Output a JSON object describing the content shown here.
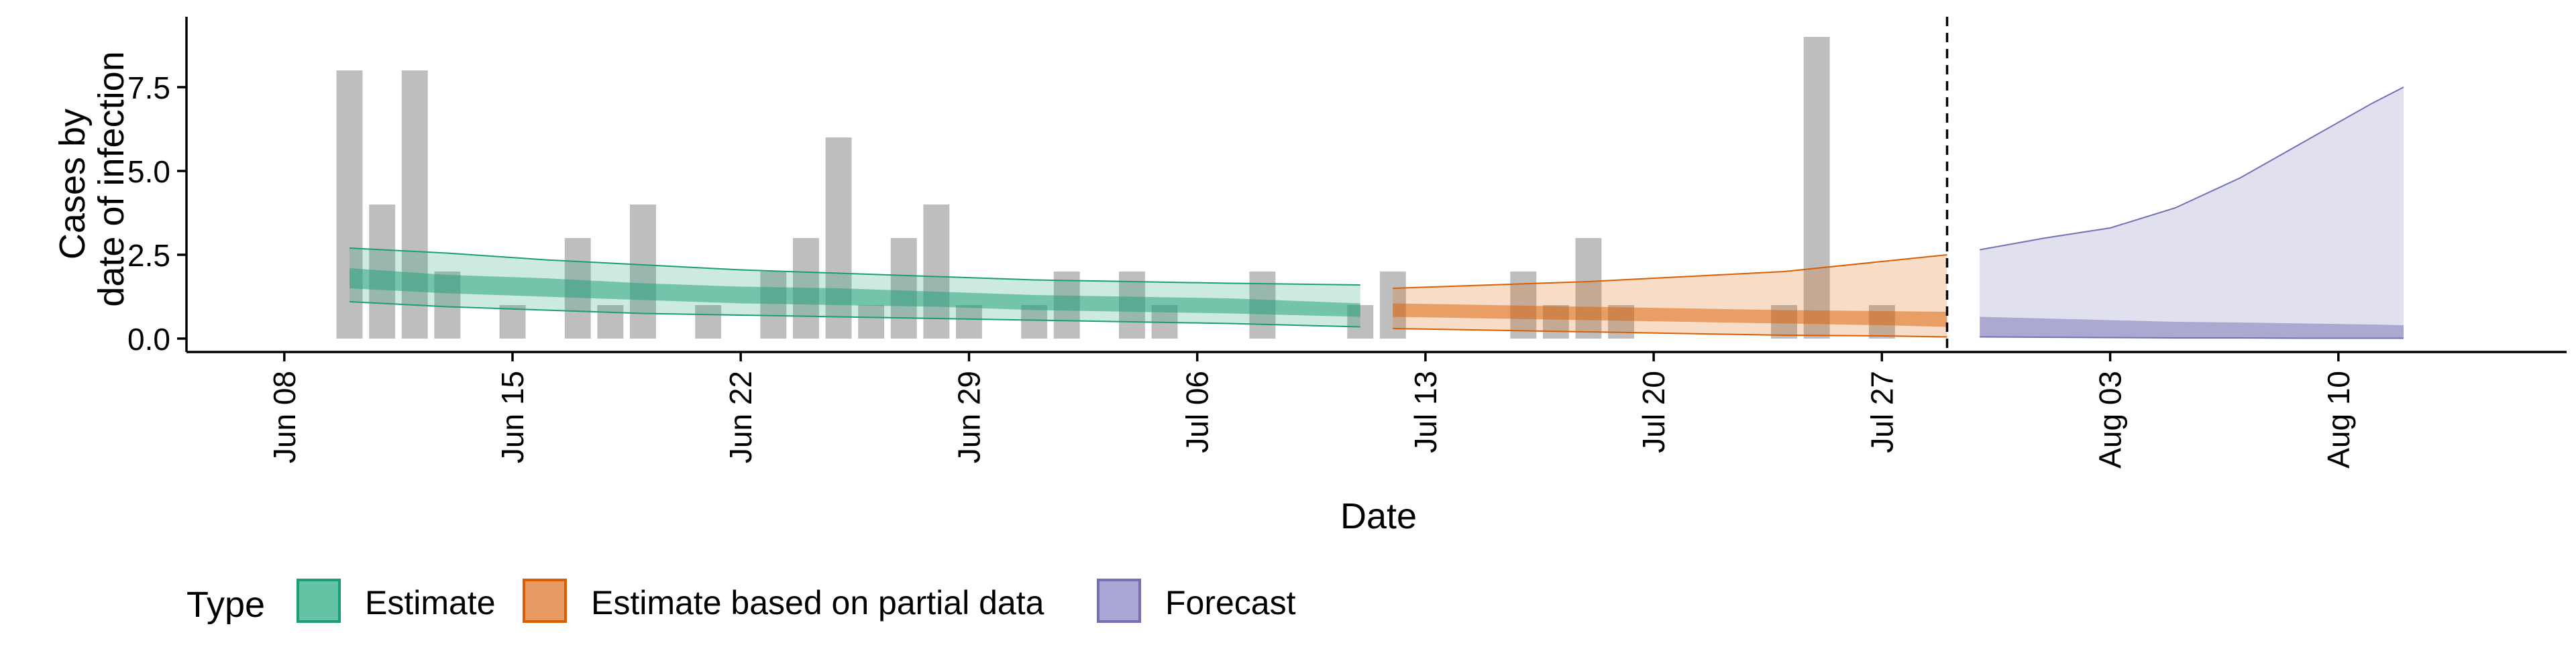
{
  "chart_data": {
    "type": "bar",
    "title": "",
    "xlabel": "Date",
    "ylabel_lines": [
      "Cases by",
      "date of infection"
    ],
    "xlim": [
      "2020-06-05",
      "2020-08-17"
    ],
    "ylim": [
      -0.4,
      9.6
    ],
    "x_ticks": [
      {
        "date": "2020-06-08",
        "label": "Jun 08"
      },
      {
        "date": "2020-06-15",
        "label": "Jun 15"
      },
      {
        "date": "2020-06-22",
        "label": "Jun 22"
      },
      {
        "date": "2020-06-29",
        "label": "Jun 29"
      },
      {
        "date": "2020-07-06",
        "label": "Jul 06"
      },
      {
        "date": "2020-07-13",
        "label": "Jul 13"
      },
      {
        "date": "2020-07-20",
        "label": "Jul 20"
      },
      {
        "date": "2020-07-27",
        "label": "Jul 27"
      },
      {
        "date": "2020-08-03",
        "label": "Aug 03"
      },
      {
        "date": "2020-08-10",
        "label": "Aug 10"
      }
    ],
    "y_ticks": [
      {
        "value": 0,
        "label": "0.0"
      },
      {
        "value": 2.5,
        "label": "2.5"
      },
      {
        "value": 5,
        "label": "5.0"
      },
      {
        "value": 7.5,
        "label": "7.5"
      }
    ],
    "forecast_start": "2020-07-29",
    "reported_cases": {
      "dates": [
        "2020-06-10",
        "2020-06-11",
        "2020-06-12",
        "2020-06-13",
        "2020-06-14",
        "2020-06-15",
        "2020-06-16",
        "2020-06-17",
        "2020-06-18",
        "2020-06-19",
        "2020-06-20",
        "2020-06-21",
        "2020-06-22",
        "2020-06-23",
        "2020-06-24",
        "2020-06-25",
        "2020-06-26",
        "2020-06-27",
        "2020-06-28",
        "2020-06-29",
        "2020-06-30",
        "2020-07-01",
        "2020-07-02",
        "2020-07-03",
        "2020-07-04",
        "2020-07-05",
        "2020-07-06",
        "2020-07-07",
        "2020-07-08",
        "2020-07-09",
        "2020-07-10",
        "2020-07-11",
        "2020-07-12",
        "2020-07-13",
        "2020-07-14",
        "2020-07-15",
        "2020-07-16",
        "2020-07-17",
        "2020-07-18",
        "2020-07-19",
        "2020-07-20",
        "2020-07-21",
        "2020-07-22",
        "2020-07-23",
        "2020-07-24",
        "2020-07-25",
        "2020-07-26",
        "2020-07-27",
        "2020-07-28"
      ],
      "values": [
        8,
        4,
        8,
        2,
        0,
        1,
        0,
        3,
        1,
        4,
        0,
        1,
        0,
        2,
        3,
        6,
        1,
        3,
        4,
        1,
        0,
        1,
        2,
        0,
        2,
        1,
        0,
        0,
        2,
        0,
        0,
        1,
        2,
        0,
        0,
        0,
        2,
        1,
        3,
        1,
        0,
        0,
        0,
        0,
        1,
        9,
        0,
        1,
        0
      ]
    },
    "series": [
      {
        "name": "Estimate",
        "color": "#1b9e77",
        "dates": [
          "2020-06-10",
          "2020-06-13",
          "2020-06-16",
          "2020-06-19",
          "2020-06-22",
          "2020-06-25",
          "2020-06-28",
          "2020-07-01",
          "2020-07-04",
          "2020-07-07",
          "2020-07-11"
        ],
        "median": [
          1.8,
          1.6,
          1.5,
          1.4,
          1.3,
          1.25,
          1.15,
          1.05,
          1.0,
          0.95,
          0.85
        ],
        "lower_outer": [
          1.1,
          0.95,
          0.85,
          0.75,
          0.7,
          0.65,
          0.6,
          0.55,
          0.5,
          0.45,
          0.35
        ],
        "upper_outer": [
          2.7,
          2.55,
          2.35,
          2.2,
          2.05,
          1.95,
          1.85,
          1.75,
          1.7,
          1.65,
          1.6
        ],
        "lower_inner": [
          1.5,
          1.35,
          1.25,
          1.15,
          1.05,
          1.0,
          0.95,
          0.85,
          0.8,
          0.75,
          0.65
        ],
        "upper_inner": [
          2.1,
          1.9,
          1.8,
          1.65,
          1.55,
          1.5,
          1.4,
          1.3,
          1.25,
          1.2,
          1.05
        ]
      },
      {
        "name": "Estimate based on partial data",
        "color": "#d95f02",
        "dates": [
          "2020-07-12",
          "2020-07-15",
          "2020-07-18",
          "2020-07-21",
          "2020-07-24",
          "2020-07-27",
          "2020-07-29"
        ],
        "median": [
          0.85,
          0.8,
          0.75,
          0.7,
          0.65,
          0.6,
          0.55
        ],
        "lower_outer": [
          0.3,
          0.25,
          0.2,
          0.15,
          0.1,
          0.08,
          0.05
        ],
        "upper_outer": [
          1.5,
          1.6,
          1.7,
          1.85,
          2.0,
          2.3,
          2.5
        ],
        "lower_inner": [
          0.65,
          0.6,
          0.55,
          0.5,
          0.45,
          0.4,
          0.35
        ],
        "upper_inner": [
          1.05,
          1.0,
          0.95,
          0.9,
          0.85,
          0.82,
          0.8
        ]
      },
      {
        "name": "Forecast",
        "color": "#7570b3",
        "dates": [
          "2020-07-30",
          "2020-08-01",
          "2020-08-03",
          "2020-08-05",
          "2020-08-07",
          "2020-08-09",
          "2020-08-11",
          "2020-08-12"
        ],
        "lower_outer": [
          0.05,
          0.04,
          0.03,
          0.02,
          0.02,
          0.01,
          0.01,
          0.01
        ],
        "upper_outer": [
          2.65,
          3.0,
          3.3,
          3.9,
          4.8,
          5.9,
          7.0,
          7.5
        ],
        "lower_inner": [
          0.05,
          0.04,
          0.03,
          0.02,
          0.02,
          0.01,
          0.01,
          0.01
        ],
        "upper_inner": [
          0.65,
          0.6,
          0.55,
          0.5,
          0.48,
          0.45,
          0.42,
          0.4
        ]
      }
    ],
    "legend": {
      "position": "bottom-left",
      "title": "Type",
      "entries": [
        {
          "label": "Estimate",
          "color": "#1b9e77",
          "fill": "#66c2a5"
        },
        {
          "label": "Estimate based on partial data",
          "color": "#d95f02",
          "fill": "#e89a63"
        },
        {
          "label": "Forecast",
          "color": "#7570b3",
          "fill": "#a9a6d6"
        }
      ]
    }
  }
}
